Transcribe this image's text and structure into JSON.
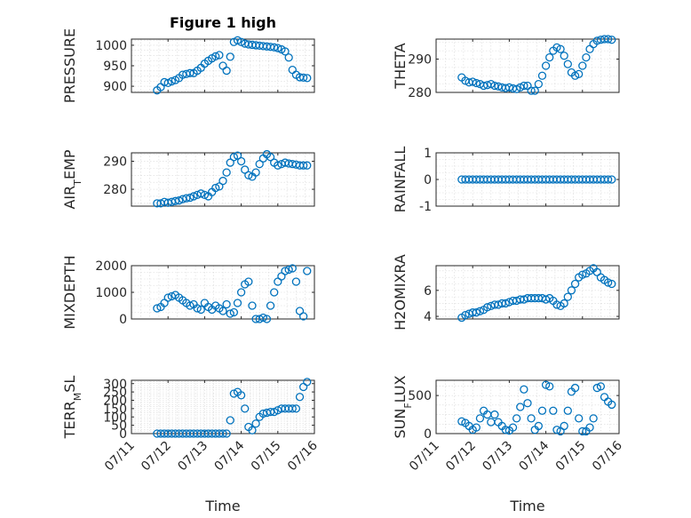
{
  "title": "Figure 1 high",
  "marker_color": "#0072bd",
  "x_tick_labels": [
    "07/11",
    "07/12",
    "07/13",
    "07/14",
    "07/15",
    "07/16"
  ],
  "xlabel": "Time",
  "chart_data": [
    {
      "type": "scatter",
      "ylabel": "PRESSURE",
      "ylabel_parts": [
        "PRESSURE"
      ],
      "ylim": [
        885,
        1015
      ],
      "yticks": [
        900,
        950,
        1000
      ],
      "xlim": [
        0,
        5
      ],
      "x_ticks_shown": false,
      "grid": true,
      "marker": "circle",
      "x": [
        0.7,
        0.8,
        0.9,
        1.0,
        1.1,
        1.2,
        1.3,
        1.4,
        1.5,
        1.6,
        1.7,
        1.8,
        1.9,
        2.0,
        2.1,
        2.2,
        2.3,
        2.4,
        2.5,
        2.6,
        2.7,
        2.8,
        2.9,
        3.0,
        3.1,
        3.2,
        3.3,
        3.4,
        3.5,
        3.6,
        3.7,
        3.8,
        3.9,
        4.0,
        4.1,
        4.2,
        4.3,
        4.4,
        4.5,
        4.6,
        4.7,
        4.8
      ],
      "y": [
        890,
        898,
        910,
        908,
        912,
        915,
        920,
        928,
        930,
        932,
        932,
        938,
        945,
        955,
        962,
        968,
        973,
        976,
        950,
        938,
        972,
        1008,
        1012,
        1008,
        1004,
        1002,
        1001,
        1000,
        999,
        998,
        997,
        996,
        995,
        993,
        990,
        985,
        970,
        940,
        928,
        922,
        921,
        920
      ]
    },
    {
      "type": "scatter",
      "ylabel": "THETA",
      "ylabel_parts": [
        "THETA"
      ],
      "ylim": [
        280,
        296
      ],
      "yticks": [
        280,
        290
      ],
      "xlim": [
        0,
        5
      ],
      "x_ticks_shown": false,
      "grid": true,
      "marker": "circle",
      "x": [
        0.7,
        0.8,
        0.9,
        1.0,
        1.1,
        1.2,
        1.3,
        1.4,
        1.5,
        1.6,
        1.7,
        1.8,
        1.9,
        2.0,
        2.1,
        2.2,
        2.3,
        2.4,
        2.5,
        2.6,
        2.7,
        2.8,
        2.9,
        3.0,
        3.1,
        3.2,
        3.3,
        3.4,
        3.5,
        3.6,
        3.7,
        3.8,
        3.9,
        4.0,
        4.1,
        4.2,
        4.3,
        4.4,
        4.5,
        4.6,
        4.7,
        4.8
      ],
      "y": [
        284.5,
        283.5,
        283.0,
        283.2,
        282.8,
        282.5,
        282.0,
        282.2,
        282.5,
        282.0,
        281.8,
        281.5,
        281.3,
        281.5,
        281.2,
        281.0,
        281.5,
        282.0,
        282.0,
        280.5,
        280.5,
        282.5,
        285.0,
        288.0,
        290.5,
        292.5,
        293.5,
        293.0,
        291.0,
        288.5,
        286.0,
        285.0,
        285.5,
        288.0,
        290.5,
        293.0,
        294.5,
        295.5,
        295.8,
        296.0,
        296.0,
        295.8
      ]
    },
    {
      "type": "scatter",
      "ylabel": "AIR_TEMP",
      "ylabel_parts": [
        "AIR",
        "T",
        "EMP"
      ],
      "ylim": [
        274,
        293
      ],
      "yticks": [
        280,
        290
      ],
      "xlim": [
        0,
        5
      ],
      "x_ticks_shown": false,
      "grid": true,
      "marker": "circle",
      "x": [
        0.7,
        0.8,
        0.9,
        1.0,
        1.1,
        1.2,
        1.3,
        1.4,
        1.5,
        1.6,
        1.7,
        1.8,
        1.9,
        2.0,
        2.1,
        2.2,
        2.3,
        2.4,
        2.5,
        2.6,
        2.7,
        2.8,
        2.9,
        3.0,
        3.1,
        3.2,
        3.3,
        3.4,
        3.5,
        3.6,
        3.7,
        3.8,
        3.9,
        4.0,
        4.1,
        4.2,
        4.3,
        4.4,
        4.5,
        4.6,
        4.7,
        4.8
      ],
      "y": [
        275.0,
        275.0,
        275.5,
        275.2,
        275.5,
        275.8,
        276.0,
        276.5,
        276.8,
        277.0,
        277.5,
        278.0,
        278.5,
        278.0,
        277.5,
        279.0,
        280.5,
        281.0,
        283.0,
        286.0,
        289.5,
        291.5,
        292.0,
        290.0,
        287.0,
        285.0,
        284.5,
        286.0,
        289.0,
        291.0,
        292.5,
        291.5,
        289.5,
        288.5,
        289.0,
        289.5,
        289.2,
        289.0,
        288.8,
        288.5,
        288.5,
        288.5
      ]
    },
    {
      "type": "scatter",
      "ylabel": "RAINFALL",
      "ylabel_parts": [
        "RAINFALL"
      ],
      "ylim": [
        -1,
        1
      ],
      "yticks": [
        -1,
        0,
        1
      ],
      "xlim": [
        0,
        5
      ],
      "x_ticks_shown": false,
      "grid": true,
      "marker": "circle",
      "x": [
        0.7,
        0.8,
        0.9,
        1.0,
        1.1,
        1.2,
        1.3,
        1.4,
        1.5,
        1.6,
        1.7,
        1.8,
        1.9,
        2.0,
        2.1,
        2.2,
        2.3,
        2.4,
        2.5,
        2.6,
        2.7,
        2.8,
        2.9,
        3.0,
        3.1,
        3.2,
        3.3,
        3.4,
        3.5,
        3.6,
        3.7,
        3.8,
        3.9,
        4.0,
        4.1,
        4.2,
        4.3,
        4.4,
        4.5,
        4.6,
        4.7,
        4.8
      ],
      "y": [
        0,
        0,
        0,
        0,
        0,
        0,
        0,
        0,
        0,
        0,
        0,
        0,
        0,
        0,
        0,
        0,
        0,
        0,
        0,
        0,
        0,
        0,
        0,
        0,
        0,
        0,
        0,
        0,
        0,
        0,
        0,
        0,
        0,
        0,
        0,
        0,
        0,
        0,
        0,
        0,
        0,
        0
      ]
    },
    {
      "type": "scatter",
      "ylabel": "MIXDEPTH",
      "ylabel_parts": [
        "MIXDEPTH"
      ],
      "ylim": [
        0,
        2000
      ],
      "yticks": [
        0,
        1000,
        2000
      ],
      "xlim": [
        0,
        5
      ],
      "x_ticks_shown": false,
      "grid": true,
      "marker": "circle",
      "x": [
        0.7,
        0.8,
        0.9,
        1.0,
        1.1,
        1.2,
        1.3,
        1.4,
        1.5,
        1.6,
        1.7,
        1.8,
        1.9,
        2.0,
        2.1,
        2.2,
        2.3,
        2.4,
        2.5,
        2.6,
        2.7,
        2.8,
        2.9,
        3.0,
        3.1,
        3.2,
        3.3,
        3.4,
        3.5,
        3.6,
        3.7,
        3.8,
        3.9,
        4.0,
        4.1,
        4.2,
        4.3,
        4.4,
        4.5,
        4.6,
        4.7,
        4.8
      ],
      "y": [
        400,
        450,
        600,
        800,
        850,
        900,
        800,
        700,
        600,
        500,
        550,
        400,
        350,
        600,
        450,
        350,
        500,
        400,
        300,
        550,
        200,
        250,
        600,
        1000,
        1300,
        1400,
        500,
        0,
        0,
        50,
        0,
        500,
        1000,
        1400,
        1600,
        1800,
        1850,
        1900,
        1400,
        300,
        100,
        1800
      ]
    },
    {
      "type": "scatter",
      "ylabel": "H2OMIXRA",
      "ylabel_parts": [
        "H2OMIXRA"
      ],
      "ylim": [
        3.8,
        7.9
      ],
      "yticks": [
        4,
        6
      ],
      "xlim": [
        0,
        5
      ],
      "x_ticks_shown": false,
      "grid": true,
      "marker": "circle",
      "x": [
        0.7,
        0.8,
        0.9,
        1.0,
        1.1,
        1.2,
        1.3,
        1.4,
        1.5,
        1.6,
        1.7,
        1.8,
        1.9,
        2.0,
        2.1,
        2.2,
        2.3,
        2.4,
        2.5,
        2.6,
        2.7,
        2.8,
        2.9,
        3.0,
        3.1,
        3.2,
        3.3,
        3.4,
        3.5,
        3.6,
        3.7,
        3.8,
        3.9,
        4.0,
        4.1,
        4.2,
        4.3,
        4.4,
        4.5,
        4.6,
        4.7,
        4.8
      ],
      "y": [
        3.9,
        4.1,
        4.2,
        4.3,
        4.3,
        4.4,
        4.5,
        4.7,
        4.8,
        4.9,
        4.9,
        5.0,
        5.0,
        5.1,
        5.2,
        5.2,
        5.3,
        5.3,
        5.4,
        5.4,
        5.4,
        5.4,
        5.4,
        5.3,
        5.4,
        5.2,
        4.9,
        4.8,
        5.0,
        5.5,
        6.0,
        6.5,
        7.0,
        7.2,
        7.3,
        7.5,
        7.7,
        7.4,
        7.0,
        6.8,
        6.6,
        6.5
      ]
    },
    {
      "type": "scatter",
      "ylabel": "TERR_MSL",
      "ylabel_parts": [
        "TERR",
        "M",
        "SL"
      ],
      "ylim": [
        0,
        320
      ],
      "yticks": [
        0,
        50,
        100,
        150,
        200,
        250,
        300
      ],
      "xlim": [
        0,
        5
      ],
      "x_ticks_shown": true,
      "grid": true,
      "marker": "circle",
      "x": [
        0.7,
        0.8,
        0.9,
        1.0,
        1.1,
        1.2,
        1.3,
        1.4,
        1.5,
        1.6,
        1.7,
        1.8,
        1.9,
        2.0,
        2.1,
        2.2,
        2.3,
        2.4,
        2.5,
        2.6,
        2.7,
        2.8,
        2.9,
        3.0,
        3.1,
        3.2,
        3.3,
        3.4,
        3.5,
        3.6,
        3.7,
        3.8,
        3.9,
        4.0,
        4.1,
        4.2,
        4.3,
        4.4,
        4.5,
        4.6,
        4.7,
        4.8
      ],
      "y": [
        0,
        0,
        0,
        0,
        0,
        0,
        0,
        0,
        0,
        0,
        0,
        0,
        0,
        0,
        0,
        0,
        0,
        0,
        0,
        0,
        80,
        240,
        250,
        230,
        150,
        40,
        20,
        60,
        100,
        120,
        125,
        130,
        130,
        140,
        150,
        150,
        150,
        150,
        150,
        220,
        280,
        310
      ]
    },
    {
      "type": "scatter",
      "ylabel": "SUN_FLUX",
      "ylabel_parts": [
        "SUN",
        "F",
        "LUX"
      ],
      "ylim": [
        0,
        700
      ],
      "yticks": [
        0,
        500
      ],
      "xlim": [
        0,
        5
      ],
      "x_ticks_shown": true,
      "grid": true,
      "marker": "circle",
      "x": [
        0.7,
        0.8,
        0.9,
        1.0,
        1.1,
        1.2,
        1.3,
        1.4,
        1.5,
        1.6,
        1.7,
        1.8,
        1.9,
        2.0,
        2.1,
        2.2,
        2.3,
        2.4,
        2.5,
        2.6,
        2.7,
        2.8,
        2.9,
        3.0,
        3.1,
        3.2,
        3.3,
        3.4,
        3.5,
        3.6,
        3.7,
        3.8,
        3.9,
        4.0,
        4.1,
        4.2,
        4.3,
        4.4,
        4.5,
        4.6,
        4.7,
        4.8
      ],
      "y": [
        160,
        140,
        100,
        50,
        80,
        200,
        300,
        250,
        150,
        250,
        150,
        100,
        50,
        40,
        80,
        200,
        350,
        580,
        400,
        200,
        50,
        100,
        300,
        640,
        620,
        300,
        50,
        30,
        100,
        300,
        550,
        600,
        200,
        30,
        30,
        80,
        200,
        600,
        620,
        480,
        420,
        380
      ]
    }
  ]
}
